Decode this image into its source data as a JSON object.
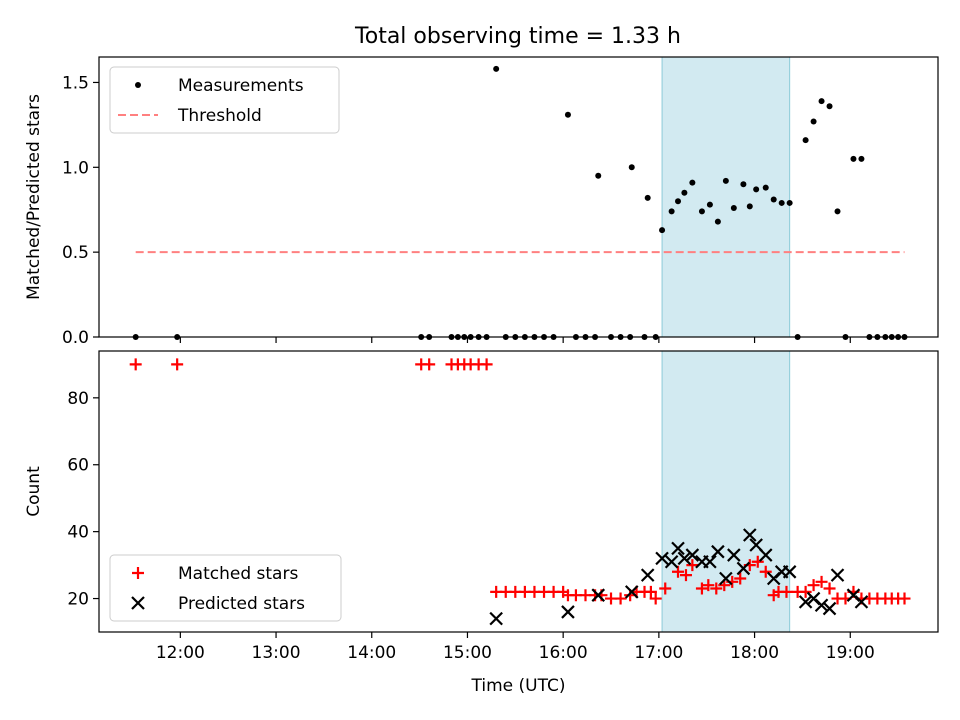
{
  "title": "Total observing time = 1.33 h",
  "chart_data": [
    {
      "type": "scatter",
      "ylabel": "Matched/Predicted stars",
      "xlim": [
        "11:09",
        "19:55"
      ],
      "ylim": [
        0,
        1.65
      ],
      "yticks": [
        "0.0",
        "0.5",
        "1.0",
        "1.5"
      ],
      "grid": false,
      "legend_placement": "top-left",
      "shaded_interval": {
        "start": "17:02",
        "end": "18:22",
        "color": "#add8e6"
      },
      "series": [
        {
          "name": "Measurements",
          "marker": "dot",
          "color": "#000000",
          "points": [
            {
              "x": "11:32",
              "y": 0
            },
            {
              "x": "11:58",
              "y": 0
            },
            {
              "x": "14:31",
              "y": 0
            },
            {
              "x": "14:36",
              "y": 0
            },
            {
              "x": "14:50",
              "y": 0
            },
            {
              "x": "14:54",
              "y": 0
            },
            {
              "x": "14:58",
              "y": 0
            },
            {
              "x": "15:02",
              "y": 0
            },
            {
              "x": "15:07",
              "y": 0
            },
            {
              "x": "15:12",
              "y": 0
            },
            {
              "x": "15:18",
              "y": 1.58
            },
            {
              "x": "15:24",
              "y": 0
            },
            {
              "x": "15:30",
              "y": 0
            },
            {
              "x": "15:36",
              "y": 0
            },
            {
              "x": "15:42",
              "y": 0
            },
            {
              "x": "15:48",
              "y": 0
            },
            {
              "x": "15:54",
              "y": 0
            },
            {
              "x": "16:03",
              "y": 1.31
            },
            {
              "x": "16:08",
              "y": 0
            },
            {
              "x": "16:14",
              "y": 0
            },
            {
              "x": "16:20",
              "y": 0
            },
            {
              "x": "16:22",
              "y": 0.95
            },
            {
              "x": "16:30",
              "y": 0
            },
            {
              "x": "16:36",
              "y": 0
            },
            {
              "x": "16:42",
              "y": 0
            },
            {
              "x": "16:43",
              "y": 1.0
            },
            {
              "x": "16:51",
              "y": 0
            },
            {
              "x": "16:53",
              "y": 0.82
            },
            {
              "x": "16:58",
              "y": 0
            },
            {
              "x": "17:02",
              "y": 0.63
            },
            {
              "x": "17:08",
              "y": 0.74
            },
            {
              "x": "17:12",
              "y": 0.8
            },
            {
              "x": "17:16",
              "y": 0.85
            },
            {
              "x": "17:21",
              "y": 0.91
            },
            {
              "x": "17:27",
              "y": 0.74
            },
            {
              "x": "17:32",
              "y": 0.78
            },
            {
              "x": "17:37",
              "y": 0.68
            },
            {
              "x": "17:42",
              "y": 0.92
            },
            {
              "x": "17:47",
              "y": 0.76
            },
            {
              "x": "17:53",
              "y": 0.9
            },
            {
              "x": "17:57",
              "y": 0.77
            },
            {
              "x": "18:01",
              "y": 0.87
            },
            {
              "x": "18:07",
              "y": 0.88
            },
            {
              "x": "18:12",
              "y": 0.81
            },
            {
              "x": "18:17",
              "y": 0.79
            },
            {
              "x": "18:22",
              "y": 0.79
            },
            {
              "x": "18:27",
              "y": 0
            },
            {
              "x": "18:32",
              "y": 1.16
            },
            {
              "x": "18:37",
              "y": 1.27
            },
            {
              "x": "18:42",
              "y": 1.39
            },
            {
              "x": "18:47",
              "y": 1.36
            },
            {
              "x": "18:52",
              "y": 0.74
            },
            {
              "x": "18:57",
              "y": 0
            },
            {
              "x": "19:02",
              "y": 1.05
            },
            {
              "x": "19:07",
              "y": 1.05
            },
            {
              "x": "19:12",
              "y": 0
            },
            {
              "x": "19:17",
              "y": 0
            },
            {
              "x": "19:22",
              "y": 0
            },
            {
              "x": "19:26",
              "y": 0
            },
            {
              "x": "19:30",
              "y": 0
            },
            {
              "x": "19:34",
              "y": 0
            }
          ]
        },
        {
          "name": "Threshold",
          "marker": "dashed-line",
          "color": "#ff8080",
          "points": [
            {
              "x": "11:32",
              "y": 0.5
            },
            {
              "x": "19:34",
              "y": 0.5
            }
          ]
        }
      ]
    },
    {
      "type": "scatter",
      "xlabel": "Time (UTC)",
      "ylabel": "Count",
      "xlim": [
        "11:09",
        "19:55"
      ],
      "ylim": [
        10,
        94
      ],
      "yticks": [
        "20",
        "40",
        "60",
        "80"
      ],
      "xticks": [
        "12:00",
        "13:00",
        "14:00",
        "15:00",
        "16:00",
        "17:00",
        "18:00",
        "19:00"
      ],
      "grid": false,
      "legend_placement": "bottom-left",
      "shaded_interval": {
        "start": "17:02",
        "end": "18:22",
        "color": "#add8e6"
      },
      "series": [
        {
          "name": "Matched stars",
          "marker": "plus",
          "color": "#ff0000",
          "points": [
            {
              "x": "11:32",
              "y": 90
            },
            {
              "x": "11:58",
              "y": 90
            },
            {
              "x": "14:31",
              "y": 90
            },
            {
              "x": "14:36",
              "y": 90
            },
            {
              "x": "14:50",
              "y": 90
            },
            {
              "x": "14:54",
              "y": 90
            },
            {
              "x": "14:58",
              "y": 90
            },
            {
              "x": "15:02",
              "y": 90
            },
            {
              "x": "15:07",
              "y": 90
            },
            {
              "x": "15:12",
              "y": 90
            },
            {
              "x": "15:18",
              "y": 22
            },
            {
              "x": "15:24",
              "y": 22
            },
            {
              "x": "15:30",
              "y": 22
            },
            {
              "x": "15:36",
              "y": 22
            },
            {
              "x": "15:42",
              "y": 22
            },
            {
              "x": "15:48",
              "y": 22
            },
            {
              "x": "15:54",
              "y": 22
            },
            {
              "x": "16:00",
              "y": 22
            },
            {
              "x": "16:03",
              "y": 21
            },
            {
              "x": "16:08",
              "y": 21
            },
            {
              "x": "16:14",
              "y": 21
            },
            {
              "x": "16:20",
              "y": 21
            },
            {
              "x": "16:24",
              "y": 21
            },
            {
              "x": "16:30",
              "y": 20
            },
            {
              "x": "16:36",
              "y": 20
            },
            {
              "x": "16:42",
              "y": 21
            },
            {
              "x": "16:46",
              "y": 22
            },
            {
              "x": "16:51",
              "y": 22
            },
            {
              "x": "16:55",
              "y": 22
            },
            {
              "x": "16:58",
              "y": 20
            },
            {
              "x": "17:04",
              "y": 23
            },
            {
              "x": "17:12",
              "y": 28
            },
            {
              "x": "17:17",
              "y": 27
            },
            {
              "x": "17:21",
              "y": 30
            },
            {
              "x": "17:27",
              "y": 23
            },
            {
              "x": "17:31",
              "y": 24
            },
            {
              "x": "17:36",
              "y": 23
            },
            {
              "x": "17:41",
              "y": 24
            },
            {
              "x": "17:46",
              "y": 25
            },
            {
              "x": "17:51",
              "y": 26
            },
            {
              "x": "17:57",
              "y": 30
            },
            {
              "x": "18:02",
              "y": 31
            },
            {
              "x": "18:07",
              "y": 28
            },
            {
              "x": "18:12",
              "y": 21
            },
            {
              "x": "18:15",
              "y": 22
            },
            {
              "x": "18:20",
              "y": 22
            },
            {
              "x": "18:27",
              "y": 22
            },
            {
              "x": "18:32",
              "y": 22
            },
            {
              "x": "18:37",
              "y": 24
            },
            {
              "x": "18:42",
              "y": 25
            },
            {
              "x": "18:47",
              "y": 23
            },
            {
              "x": "18:52",
              "y": 20
            },
            {
              "x": "18:57",
              "y": 20
            },
            {
              "x": "19:02",
              "y": 22
            },
            {
              "x": "19:07",
              "y": 20
            },
            {
              "x": "19:12",
              "y": 20
            },
            {
              "x": "19:17",
              "y": 20
            },
            {
              "x": "19:22",
              "y": 20
            },
            {
              "x": "19:26",
              "y": 20
            },
            {
              "x": "19:30",
              "y": 20
            },
            {
              "x": "19:34",
              "y": 20
            }
          ]
        },
        {
          "name": "Predicted stars",
          "marker": "x",
          "color": "#000000",
          "points": [
            {
              "x": "15:18",
              "y": 14
            },
            {
              "x": "16:03",
              "y": 16
            },
            {
              "x": "16:22",
              "y": 21
            },
            {
              "x": "16:43",
              "y": 22
            },
            {
              "x": "16:53",
              "y": 27
            },
            {
              "x": "17:02",
              "y": 32
            },
            {
              "x": "17:08",
              "y": 31
            },
            {
              "x": "17:12",
              "y": 35
            },
            {
              "x": "17:16",
              "y": 32
            },
            {
              "x": "17:21",
              "y": 33
            },
            {
              "x": "17:27",
              "y": 31
            },
            {
              "x": "17:32",
              "y": 31
            },
            {
              "x": "17:37",
              "y": 34
            },
            {
              "x": "17:42",
              "y": 26
            },
            {
              "x": "17:47",
              "y": 33
            },
            {
              "x": "17:53",
              "y": 29
            },
            {
              "x": "17:57",
              "y": 39
            },
            {
              "x": "18:01",
              "y": 36
            },
            {
              "x": "18:07",
              "y": 33
            },
            {
              "x": "18:12",
              "y": 26
            },
            {
              "x": "18:17",
              "y": 28
            },
            {
              "x": "18:22",
              "y": 28
            },
            {
              "x": "18:32",
              "y": 19
            },
            {
              "x": "18:37",
              "y": 20
            },
            {
              "x": "18:42",
              "y": 18
            },
            {
              "x": "18:47",
              "y": 17
            },
            {
              "x": "18:52",
              "y": 27
            },
            {
              "x": "19:02",
              "y": 21
            },
            {
              "x": "19:07",
              "y": 19
            }
          ]
        }
      ]
    }
  ]
}
